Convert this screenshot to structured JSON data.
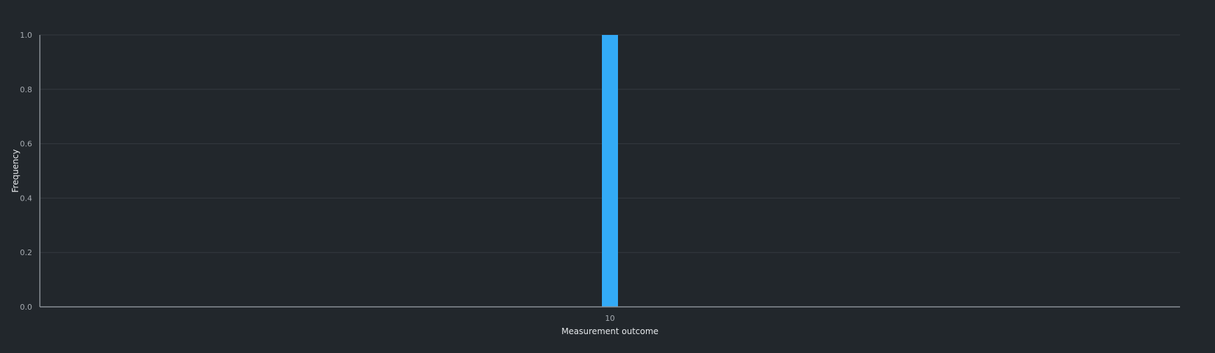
{
  "chart_data": {
    "type": "bar",
    "categories": [
      "10"
    ],
    "values": [
      1.0
    ],
    "title": "",
    "xlabel": "Measurement outcome",
    "ylabel": "Frequency",
    "ylim": [
      0,
      1.0
    ],
    "yticks": [
      "0.0",
      "0.2",
      "0.4",
      "0.6",
      "0.8",
      "1.0"
    ],
    "grid": true,
    "legend": "none"
  },
  "colors": {
    "background": "#22272c",
    "bar": "#33aaf6"
  }
}
